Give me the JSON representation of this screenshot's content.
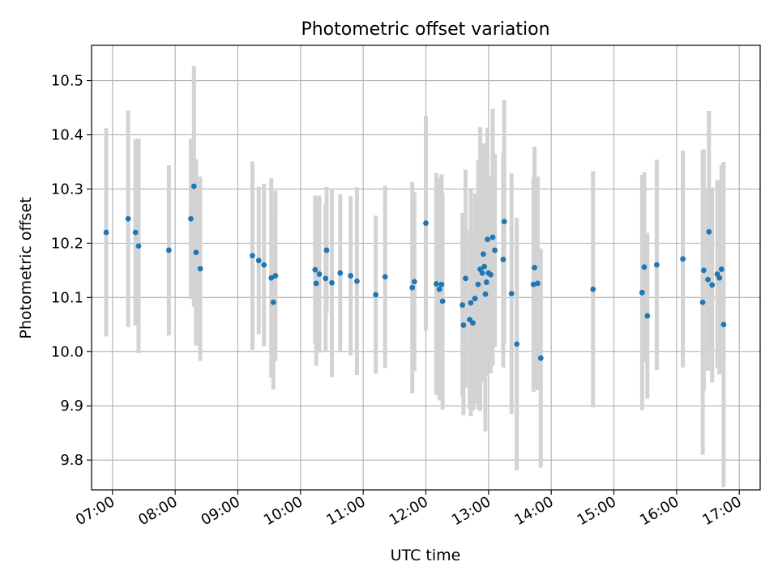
{
  "chart_data": {
    "type": "scatter",
    "title": "Photometric offset variation",
    "xlabel": "UTC time",
    "ylabel": "Photometric offset",
    "xlim": [
      "06:40",
      "17:20"
    ],
    "ylim": [
      9.745,
      10.565
    ],
    "grid": true,
    "x_ticks": [
      "07:00",
      "08:00",
      "09:00",
      "10:00",
      "11:00",
      "12:00",
      "13:00",
      "14:00",
      "15:00",
      "16:00",
      "17:00"
    ],
    "y_ticks": [
      9.8,
      9.9,
      10.0,
      10.1,
      10.2,
      10.3,
      10.4,
      10.5
    ],
    "y_tick_labels": [
      "9.8",
      "9.9",
      "10.0",
      "10.1",
      "10.2",
      "10.3",
      "10.4",
      "10.5"
    ],
    "colors": {
      "marker": "#1f77b4",
      "errorbar": "#d3d3d3",
      "grid": "#b0b0b0"
    },
    "series": [
      {
        "x": [
          "06:54",
          "07:15",
          "07:22",
          "07:25",
          "07:54",
          "08:15",
          "08:18",
          "08:20",
          "08:24",
          "09:14",
          "09:20",
          "09:25",
          "09:32",
          "09:34",
          "09:36",
          "10:14",
          "10:15",
          "10:18",
          "10:24",
          "10:25",
          "10:30",
          "10:38",
          "10:48",
          "10:54",
          "11:12",
          "11:21",
          "11:47",
          "11:49",
          "12:00",
          "12:10",
          "12:13",
          "12:15",
          "12:16",
          "12:35",
          "12:36",
          "12:38",
          "12:42",
          "12:43",
          "12:45",
          "12:47",
          "12:50",
          "12:52",
          "12:54",
          "12:55",
          "12:56",
          "12:57",
          "12:58",
          "12:59",
          "13:00",
          "13:02",
          "13:04",
          "13:06",
          "13:14",
          "13:15",
          "13:22",
          "13:27",
          "13:43",
          "13:44",
          "13:47",
          "13:50",
          "14:40",
          "15:27",
          "15:29",
          "15:32",
          "15:41",
          "16:06",
          "16:25",
          "16:26",
          "16:30",
          "16:31",
          "16:34",
          "16:39",
          "16:41",
          "16:43",
          "16:45"
        ],
        "y": [
          10.22,
          10.245,
          10.22,
          10.195,
          10.187,
          10.245,
          10.305,
          10.183,
          10.153,
          10.177,
          10.168,
          10.16,
          10.136,
          10.091,
          10.14,
          10.151,
          10.126,
          10.143,
          10.135,
          10.187,
          10.127,
          10.145,
          10.14,
          10.13,
          10.105,
          10.138,
          10.118,
          10.129,
          10.237,
          10.125,
          10.115,
          10.124,
          10.093,
          10.086,
          10.049,
          10.135,
          10.059,
          10.09,
          10.053,
          10.098,
          10.124,
          10.152,
          10.145,
          10.18,
          10.157,
          10.106,
          10.128,
          10.207,
          10.145,
          10.142,
          10.211,
          10.187,
          10.17,
          10.24,
          10.107,
          10.014,
          10.124,
          10.155,
          10.126,
          9.988,
          10.115,
          10.109,
          10.156,
          10.066,
          10.16,
          10.171,
          10.091,
          10.15,
          10.133,
          10.221,
          10.123,
          10.143,
          10.136,
          10.152,
          10.05
        ],
        "yerr": [
          0.192,
          0.2,
          0.172,
          0.198,
          0.157,
          0.148,
          0.222,
          0.172,
          0.17,
          0.174,
          0.136,
          0.15,
          0.184,
          0.161,
          0.157,
          0.137,
          0.152,
          0.145,
          0.136,
          0.117,
          0.174,
          0.145,
          0.147,
          0.173,
          0.146,
          0.168,
          0.195,
          0.165,
          0.198,
          0.205,
          0.205,
          0.203,
          0.2,
          0.17,
          0.166,
          0.201,
          0.164,
          0.209,
          0.161,
          0.194,
          0.23,
          0.262,
          0.202,
          0.204,
          0.196,
          0.253,
          0.172,
          0.206,
          0.154,
          0.182,
          0.237,
          0.178,
          0.199,
          0.225,
          0.222,
          0.233,
          0.198,
          0.223,
          0.197,
          0.202,
          0.218,
          0.217,
          0.175,
          0.153,
          0.194,
          0.2,
          0.281,
          0.223,
          0.168,
          0.223,
          0.18,
          0.174,
          0.178,
          0.192,
          0.3
        ]
      }
    ]
  }
}
